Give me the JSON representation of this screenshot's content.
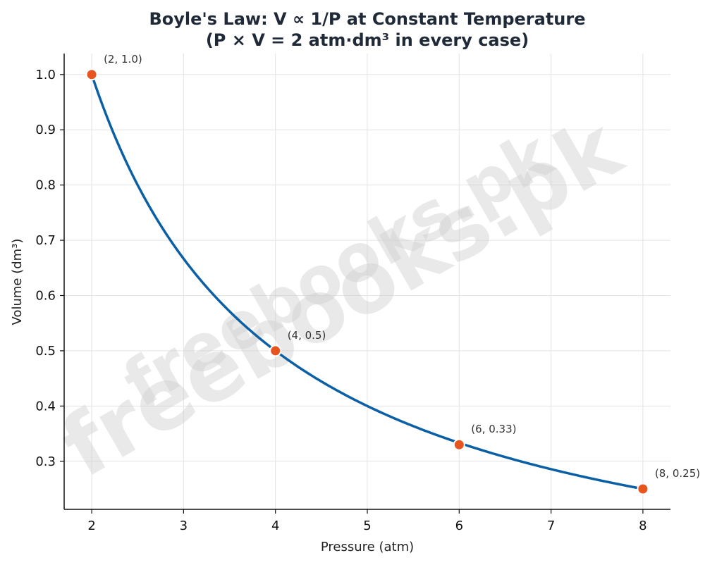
{
  "chart_data": {
    "type": "line",
    "title": "Boyle's Law: V ∝ 1/P at Constant Temperature",
    "subtitle": "(P × V = 2 atm·dm³ in every case)",
    "xlabel": "Pressure (atm)",
    "ylabel": "Volume (dm³)",
    "xlim": [
      1.7,
      8.3
    ],
    "ylim": [
      0.213,
      1.038
    ],
    "x_ticks": [
      2,
      3,
      4,
      5,
      6,
      7,
      8
    ],
    "y_ticks": [
      0.3,
      0.4,
      0.5,
      0.6,
      0.7,
      0.8,
      0.9,
      1.0
    ],
    "y_tick_labels": [
      "0.3",
      "0.4",
      "0.5",
      "0.6",
      "0.7",
      "0.8",
      "0.9",
      "1.0"
    ],
    "grid": true,
    "curve": {
      "function": "V = 2 / P",
      "x_range": [
        2,
        8
      ],
      "color": "#0b5fa5"
    },
    "points": [
      {
        "x": 2,
        "y": 1.0,
        "label": "(2, 1.0)"
      },
      {
        "x": 4,
        "y": 0.5,
        "label": "(4, 0.5)"
      },
      {
        "x": 6,
        "y": 0.33,
        "label": "(6, 0.33)"
      },
      {
        "x": 8,
        "y": 0.25,
        "label": "(8, 0.25)"
      }
    ],
    "point_color": "#e8541e",
    "watermark": [
      "freebooks.pk",
      "freebooks.pk"
    ]
  }
}
